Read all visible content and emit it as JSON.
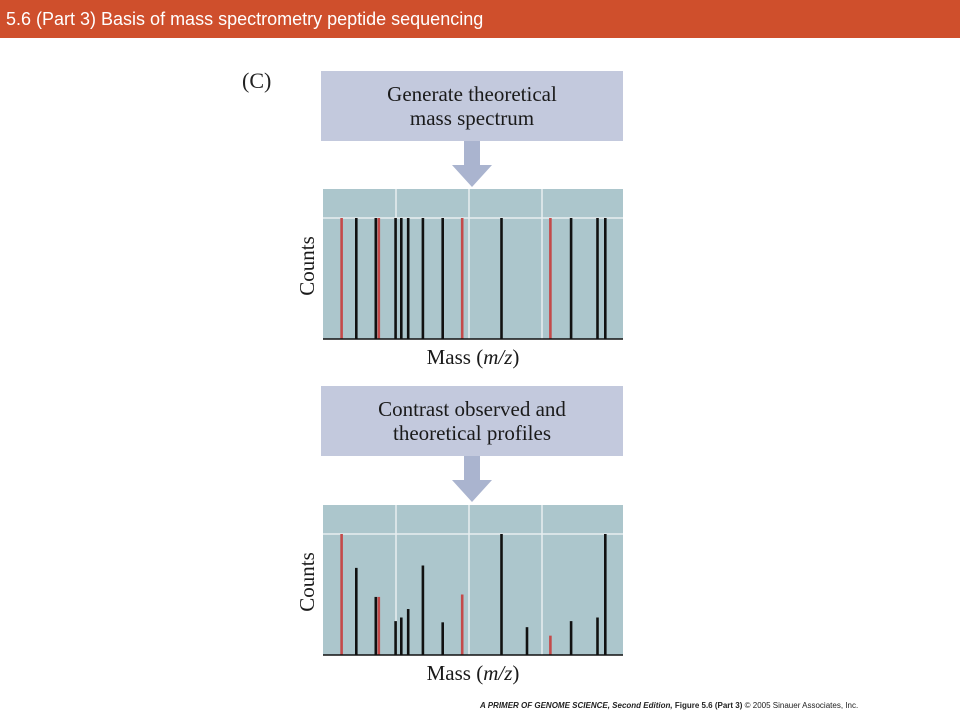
{
  "slide_title": "5.6 (Part 3)  Basis of mass spectrometry peptide sequencing",
  "panel_label": "(C)",
  "steps": [
    {
      "line1": "Generate theoretical",
      "line2": "mass spectrum"
    },
    {
      "line1": "Contrast observed and",
      "line2": "theoretical profiles"
    }
  ],
  "colors": {
    "title_bar": "#cf4f2c",
    "box": "#c3c9dd",
    "arrow": "#aab4cf",
    "plot_bg": "#acc6cc",
    "peak_black": "#111111",
    "peak_red": "#c44a4a"
  },
  "footer": {
    "book": "A PRIMER OF GENOME SCIENCE, Second Edition,",
    "figure": "Figure 5.6 (Part 3)",
    "copyright": "© 2005 Sinauer Associates, Inc."
  },
  "chart_data": [
    {
      "type": "bar",
      "xlabel_text": "Mass (",
      "xlabel_var": "m/z",
      "xlabel_close": ")",
      "ylabel": "Counts",
      "xlim": [
        0,
        100
      ],
      "ylim": [
        0,
        100
      ],
      "peaks": [
        {
          "x": 6.2,
          "y": 100,
          "color": "red"
        },
        {
          "x": 11.1,
          "y": 100,
          "color": "black"
        },
        {
          "x": 17.6,
          "y": 100,
          "color": "black"
        },
        {
          "x": 18.6,
          "y": 100,
          "color": "red"
        },
        {
          "x": 24.2,
          "y": 100,
          "color": "black"
        },
        {
          "x": 26.1,
          "y": 100,
          "color": "black"
        },
        {
          "x": 28.4,
          "y": 100,
          "color": "black"
        },
        {
          "x": 33.3,
          "y": 100,
          "color": "black"
        },
        {
          "x": 39.9,
          "y": 100,
          "color": "black"
        },
        {
          "x": 46.4,
          "y": 100,
          "color": "red"
        },
        {
          "x": 59.5,
          "y": 100,
          "color": "black"
        },
        {
          "x": 75.8,
          "y": 100,
          "color": "red"
        },
        {
          "x": 82.7,
          "y": 100,
          "color": "black"
        },
        {
          "x": 91.5,
          "y": 100,
          "color": "black"
        },
        {
          "x": 94.1,
          "y": 100,
          "color": "black"
        }
      ]
    },
    {
      "type": "bar",
      "xlabel_text": "Mass (",
      "xlabel_var": "m/z",
      "xlabel_close": ")",
      "ylabel": "Counts",
      "xlim": [
        0,
        100
      ],
      "ylim": [
        0,
        100
      ],
      "peaks": [
        {
          "x": 6.2,
          "y": 100,
          "color": "red"
        },
        {
          "x": 11.1,
          "y": 72,
          "color": "black"
        },
        {
          "x": 17.6,
          "y": 48,
          "color": "black"
        },
        {
          "x": 18.6,
          "y": 48,
          "color": "red"
        },
        {
          "x": 24.2,
          "y": 28,
          "color": "black"
        },
        {
          "x": 26.1,
          "y": 31,
          "color": "black"
        },
        {
          "x": 28.4,
          "y": 38,
          "color": "black"
        },
        {
          "x": 33.3,
          "y": 74,
          "color": "black"
        },
        {
          "x": 39.9,
          "y": 27,
          "color": "black"
        },
        {
          "x": 46.4,
          "y": 50,
          "color": "red"
        },
        {
          "x": 59.5,
          "y": 100,
          "color": "black"
        },
        {
          "x": 68.0,
          "y": 23,
          "color": "black"
        },
        {
          "x": 75.8,
          "y": 16,
          "color": "red"
        },
        {
          "x": 82.7,
          "y": 28,
          "color": "black"
        },
        {
          "x": 91.5,
          "y": 31,
          "color": "black"
        },
        {
          "x": 94.1,
          "y": 100,
          "color": "black"
        }
      ]
    }
  ]
}
